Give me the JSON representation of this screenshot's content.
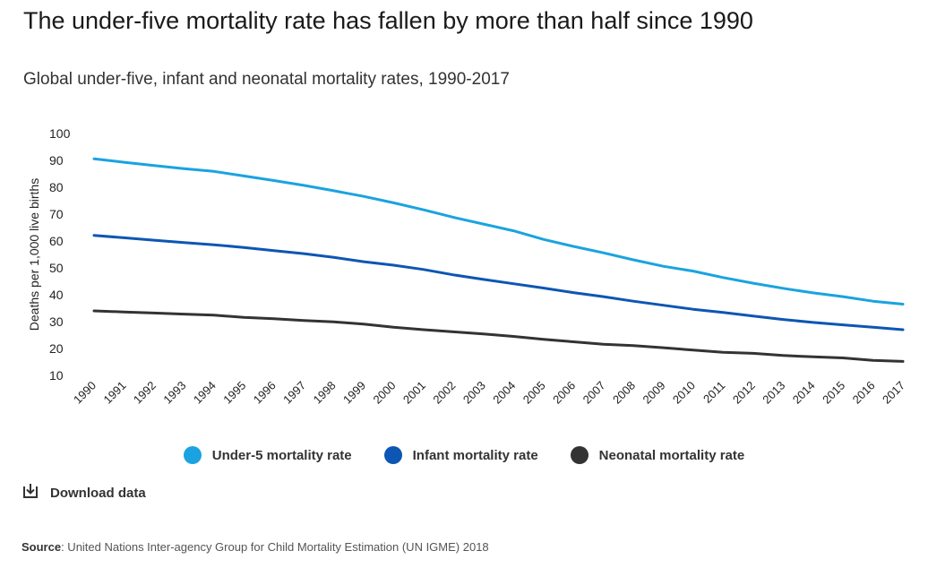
{
  "title": "The under-five mortality rate has fallen by more than half since 1990",
  "subtitle": "Global under-five, infant and neonatal mortality rates, 1990-2017",
  "download_label": "Download data",
  "download_icon": "download-icon",
  "source": {
    "label": "Source",
    "text": ": United Nations Inter-agency Group for Child Mortality Estimation (UN IGME) 2018"
  },
  "chart_data": {
    "type": "line",
    "ylabel": "Deaths per 1,000 live births",
    "xlabel": "",
    "ylim": [
      10,
      100
    ],
    "yticks": [
      "10",
      "20",
      "30",
      "40",
      "50",
      "60",
      "70",
      "80",
      "90",
      "100"
    ],
    "grid": false,
    "legend_position": "bottom",
    "x": [
      "1990",
      "1991",
      "1992",
      "1993",
      "1994",
      "1995",
      "1996",
      "1997",
      "1998",
      "1999",
      "2000",
      "2001",
      "2002",
      "2003",
      "2004",
      "2005",
      "2006",
      "2007",
      "2008",
      "2009",
      "2010",
      "2011",
      "2012",
      "2013",
      "2014",
      "2015",
      "2016",
      "2017"
    ],
    "series": [
      {
        "name": "Under-5 mortality rate",
        "color": "#1aa3e0",
        "values": [
          90.6,
          89.3,
          88.1,
          86.9,
          85.9,
          84.2,
          82.5,
          80.7,
          78.7,
          76.6,
          74.2,
          71.6,
          68.8,
          66.3,
          63.8,
          60.6,
          58.0,
          55.6,
          53.0,
          50.6,
          48.8,
          46.4,
          44.3,
          42.4,
          40.7,
          39.3,
          37.6,
          36.5
        ]
      },
      {
        "name": "Infant mortality rate",
        "color": "#0d56b3",
        "values": [
          62.1,
          61.2,
          60.3,
          59.4,
          58.6,
          57.6,
          56.4,
          55.3,
          53.9,
          52.3,
          51.0,
          49.4,
          47.4,
          45.7,
          44.1,
          42.5,
          40.8,
          39.3,
          37.6,
          36.1,
          34.6,
          33.4,
          32.1,
          30.8,
          29.7,
          28.8,
          27.9,
          27.0
        ]
      },
      {
        "name": "Neonatal mortality rate",
        "color": "#333333",
        "values": [
          34.0,
          33.6,
          33.2,
          32.8,
          32.4,
          31.6,
          31.1,
          30.4,
          29.9,
          29.1,
          27.9,
          27.0,
          26.2,
          25.4,
          24.5,
          23.4,
          22.5,
          21.6,
          21.1,
          20.3,
          19.4,
          18.6,
          18.2,
          17.4,
          16.9,
          16.5,
          15.6,
          15.2
        ]
      }
    ]
  }
}
